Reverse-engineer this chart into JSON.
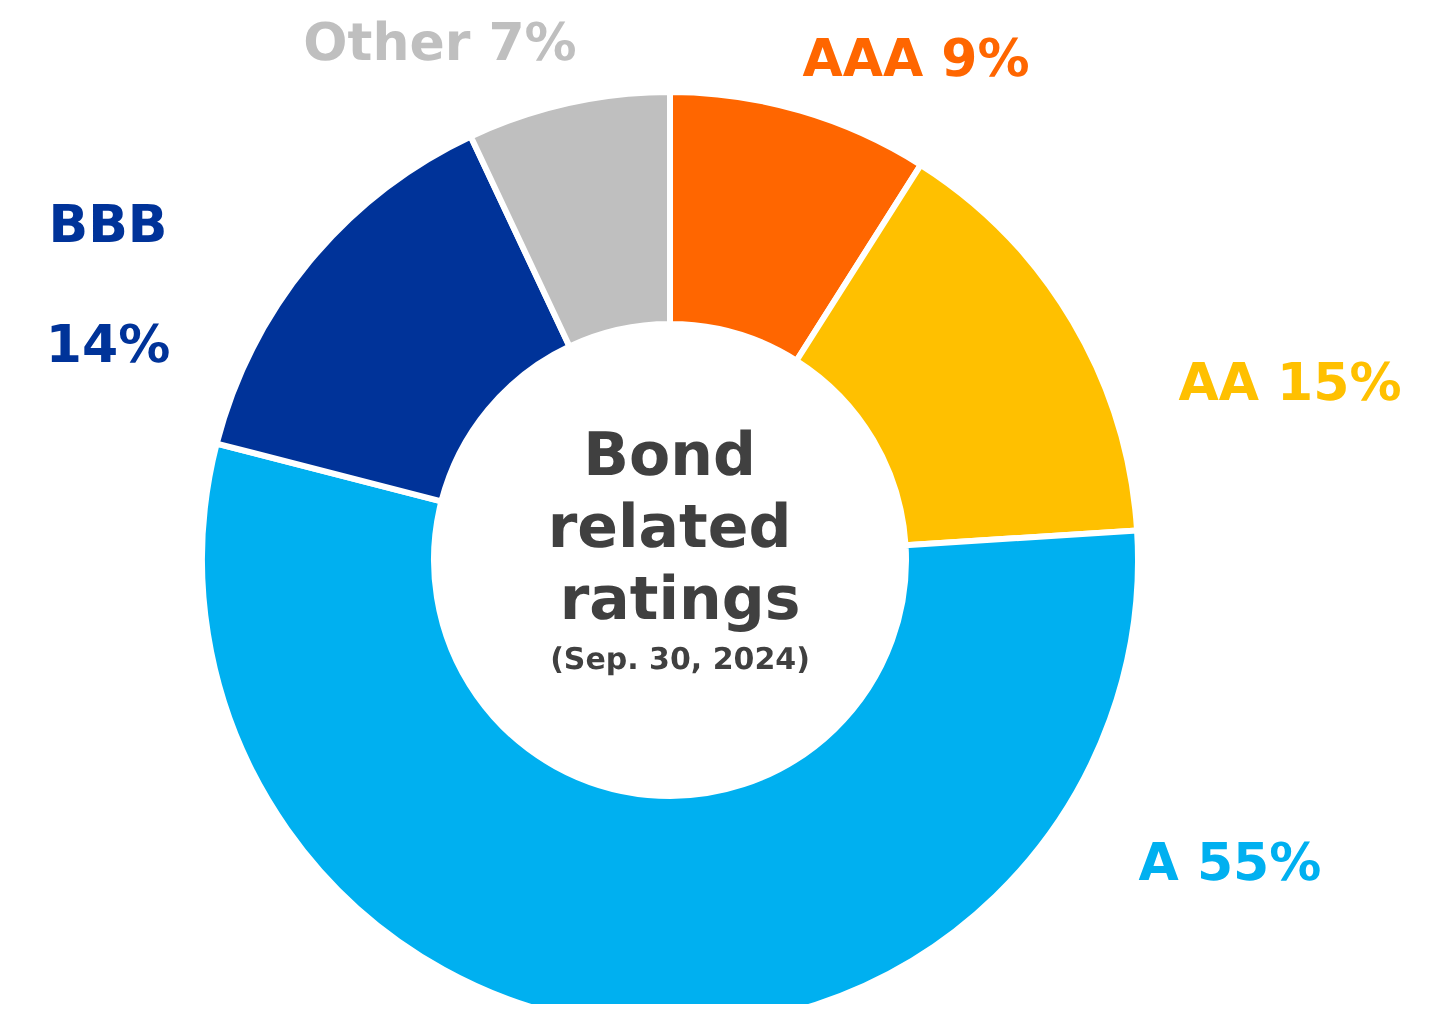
{
  "chart_data": {
    "type": "donut",
    "title": "Bond related ratings",
    "subtitle": "(Sep. 30, 2024)",
    "categories": [
      "AAA",
      "AA",
      "A",
      "BBB",
      "Other"
    ],
    "values": [
      9,
      15,
      55,
      14,
      7
    ],
    "value_labels": [
      "9%",
      "15%",
      "55%",
      "14%",
      "7%"
    ],
    "colors": [
      "#ff6600",
      "#ffc000",
      "#00b0f0",
      "#003399",
      "#bfbfbf"
    ],
    "legend": false
  }
}
